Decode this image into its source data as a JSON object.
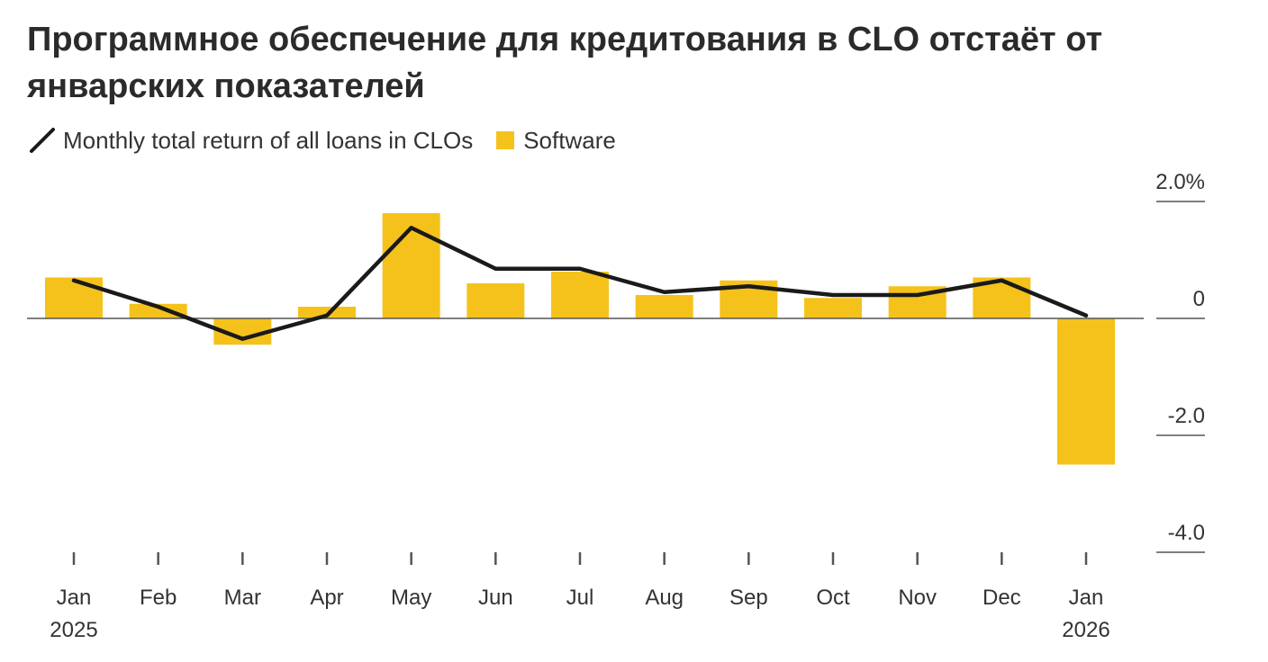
{
  "title": "Программное обеспечение для кредитования в CLO отстаёт от январских показателей",
  "legend": {
    "line_label": "Monthly total return of all loans in CLOs",
    "bar_label": "Software"
  },
  "colors": {
    "bar": "#f5c21b",
    "line": "#1a1a1a",
    "axis": "#555555",
    "text": "#333333"
  },
  "chart_data": {
    "type": "bar",
    "title": "Программное обеспечение для кредитования в CLO отстаёт от январских показателей",
    "categories": [
      "Jan",
      "Feb",
      "Mar",
      "Apr",
      "May",
      "Jun",
      "Jul",
      "Aug",
      "Sep",
      "Oct",
      "Nov",
      "Dec",
      "Jan"
    ],
    "category_years": [
      "2025",
      "",
      "",
      "",
      "",
      "",
      "",
      "",
      "",
      "",
      "",
      "",
      "2026"
    ],
    "series": [
      {
        "name": "Software",
        "type": "bar",
        "values": [
          0.7,
          0.25,
          -0.45,
          0.2,
          1.8,
          0.6,
          0.8,
          0.4,
          0.65,
          0.35,
          0.55,
          0.7,
          -2.5
        ]
      },
      {
        "name": "Monthly total return of all loans in CLOs",
        "type": "line",
        "values": [
          0.65,
          0.2,
          -0.35,
          0.05,
          1.55,
          0.85,
          0.85,
          0.45,
          0.55,
          0.4,
          0.4,
          0.65,
          0.05
        ]
      }
    ],
    "y_tick_labels": [
      "2.0%",
      "0",
      "-2.0",
      "-4.0"
    ],
    "y_ticks": [
      2.0,
      0,
      -2.0,
      -4.0
    ],
    "ylim": [
      -4.0,
      2.0
    ],
    "grid": false,
    "legend_position": "top-left",
    "xlabel": "",
    "ylabel": ""
  }
}
